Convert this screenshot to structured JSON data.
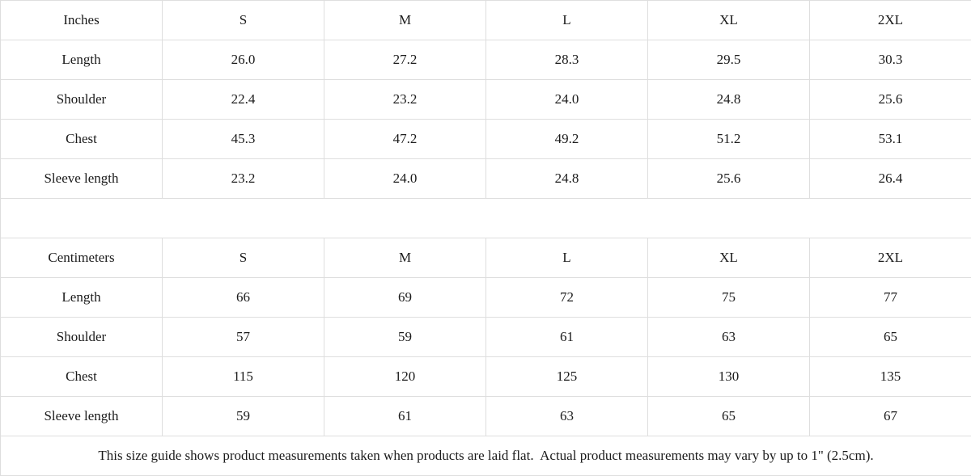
{
  "colors": {
    "header_background": "#f1f1f1",
    "cell_background": "#ffffff",
    "border": "#dedede",
    "text": "#1b1b1b"
  },
  "tables": [
    {
      "unit_label": "Inches",
      "columns": [
        "S",
        "M",
        "L",
        "XL",
        "2XL"
      ],
      "rows": [
        {
          "label": "Length",
          "values": [
            "26.0",
            "27.2",
            "28.3",
            "29.5",
            "30.3"
          ]
        },
        {
          "label": "Shoulder",
          "values": [
            "22.4",
            "23.2",
            "24.0",
            "24.8",
            "25.6"
          ]
        },
        {
          "label": "Chest",
          "values": [
            "45.3",
            "47.2",
            "49.2",
            "51.2",
            "53.1"
          ]
        },
        {
          "label": "Sleeve length",
          "values": [
            "23.2",
            "24.0",
            "24.8",
            "25.6",
            "26.4"
          ]
        }
      ]
    },
    {
      "unit_label": "Centimeters",
      "columns": [
        "S",
        "M",
        "L",
        "XL",
        "2XL"
      ],
      "rows": [
        {
          "label": "Length",
          "values": [
            "66",
            "69",
            "72",
            "75",
            "77"
          ]
        },
        {
          "label": "Shoulder",
          "values": [
            "57",
            "59",
            "61",
            "63",
            "65"
          ]
        },
        {
          "label": "Chest",
          "values": [
            "115",
            "120",
            "125",
            "130",
            "135"
          ]
        },
        {
          "label": "Sleeve length",
          "values": [
            "59",
            "61",
            "63",
            "65",
            "67"
          ]
        }
      ]
    }
  ],
  "footer": {
    "note": "This size guide shows product measurements taken when products are laid flat.  Actual product measurements may vary by up to 1\" (2.5cm)."
  }
}
